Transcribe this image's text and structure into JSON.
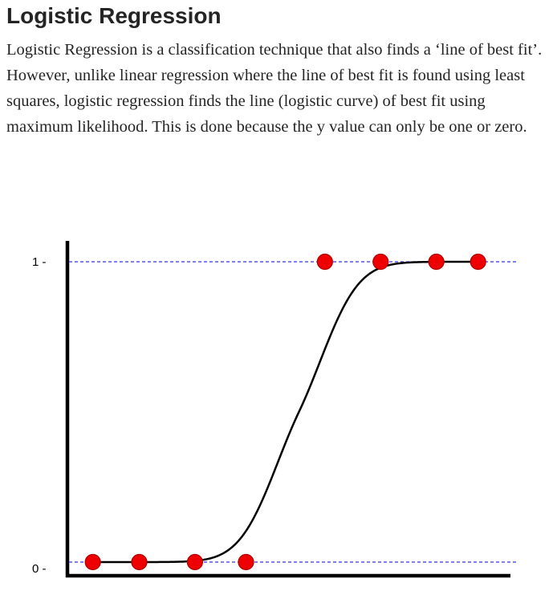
{
  "article": {
    "heading": "Logistic Regression",
    "paragraph": "Logistic Regression is a classification technique that also finds a ‘line of best fit’. However, unlike linear regression where the line of best fit is found using least squares, logistic regression finds the line (logistic curve) of best fit using maximum likelihood. This is done because the y value can only be one or zero."
  },
  "chart_data": {
    "type": "scatter",
    "title": "",
    "xlabel": "",
    "ylabel": "",
    "ylim": [
      0,
      1
    ],
    "y_tick_labels": [
      "1 -",
      "0 -"
    ],
    "y_ticks": [
      1,
      0
    ],
    "points": [
      {
        "x": 1.0,
        "y": 0
      },
      {
        "x": 1.5,
        "y": 0
      },
      {
        "x": 2.1,
        "y": 0
      },
      {
        "x": 2.65,
        "y": 0
      },
      {
        "x": 3.5,
        "y": 1
      },
      {
        "x": 4.1,
        "y": 1
      },
      {
        "x": 4.7,
        "y": 1
      },
      {
        "x": 5.15,
        "y": 1
      }
    ],
    "curve": "logistic",
    "reference_lines": [
      0,
      1
    ],
    "colors": {
      "points": "#ee0000",
      "point_outline": "#b00000",
      "reference_lines": "#3333ee",
      "curve": "#000000",
      "axes": "#000000"
    }
  }
}
